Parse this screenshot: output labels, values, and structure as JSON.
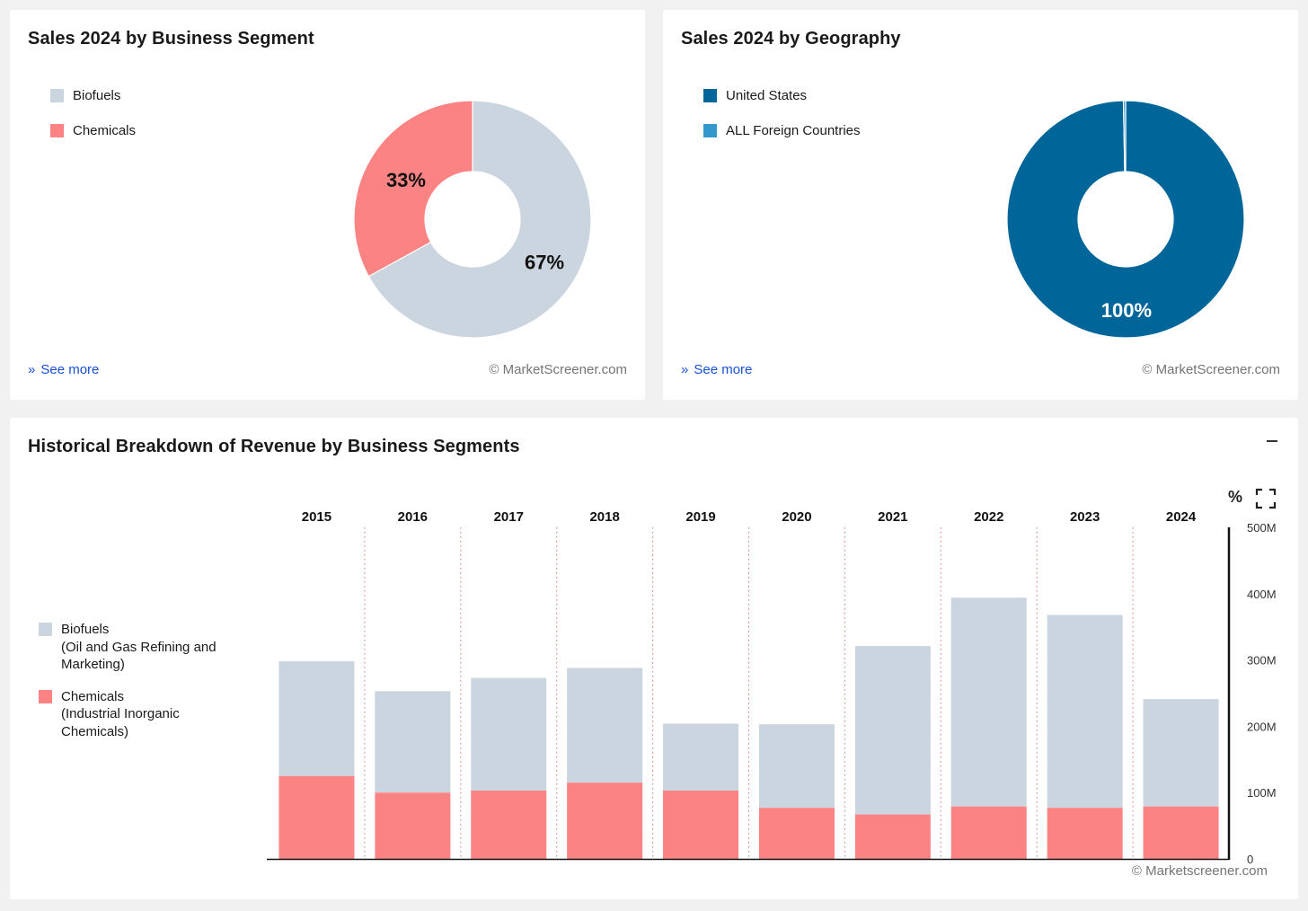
{
  "colors": {
    "biofuels": "#cbd5e0",
    "chemicals": "#fc8383",
    "united_states": "#006699",
    "foreign": "#3399cc",
    "link": "#1a4fd1"
  },
  "segment_card": {
    "title": "Sales 2024 by Business Segment",
    "see_more": "See more",
    "credit": "© MarketScreener.com",
    "legend": [
      {
        "label": "Biofuels",
        "color": "#cbd5e0"
      },
      {
        "label": "Chemicals",
        "color": "#fc8383"
      }
    ]
  },
  "geo_card": {
    "title": "Sales 2024 by Geography",
    "see_more": "See more",
    "credit": "© MarketScreener.com",
    "legend": [
      {
        "label": "United States",
        "color": "#006699"
      },
      {
        "label": "ALL Foreign Countries",
        "color": "#3399cc"
      }
    ]
  },
  "hist_card": {
    "title": "Historical Breakdown of Revenue by Business Segments",
    "percent_toggle": "%",
    "credit": "© Marketscreener.com",
    "legend": [
      {
        "line1": "Biofuels",
        "line2": "(Oil and Gas Refining and",
        "line3": "Marketing)",
        "color": "#cbd5e0"
      },
      {
        "line1": "Chemicals",
        "line2": "(Industrial Inorganic",
        "line3": "Chemicals)",
        "color": "#fc8383"
      }
    ]
  },
  "chart_data": [
    {
      "type": "pie",
      "title": "Sales 2024 by Business Segment",
      "donut": true,
      "slices": [
        {
          "name": "Biofuels",
          "value": 67,
          "label": "67%"
        },
        {
          "name": "Chemicals",
          "value": 33,
          "label": "33%"
        }
      ]
    },
    {
      "type": "pie",
      "title": "Sales 2024 by Geography",
      "donut": true,
      "slices": [
        {
          "name": "United States",
          "value": 99.7,
          "label": "100%"
        },
        {
          "name": "ALL Foreign Countries",
          "value": 0.3,
          "label": ""
        }
      ]
    },
    {
      "type": "bar",
      "stacked": true,
      "title": "Historical Breakdown of Revenue by Business Segments",
      "categories": [
        "2015",
        "2016",
        "2017",
        "2018",
        "2019",
        "2020",
        "2021",
        "2022",
        "2023",
        "2024"
      ],
      "series": [
        {
          "name": "Chemicals",
          "values": [
            125,
            100,
            103,
            115,
            103,
            77,
            67,
            79,
            77,
            79
          ]
        },
        {
          "name": "Biofuels",
          "values": [
            173,
            153,
            170,
            173,
            101,
            126,
            254,
            315,
            291,
            162
          ]
        }
      ],
      "ylim": [
        0,
        500
      ],
      "y_ticks": [
        0,
        100,
        200,
        300,
        400,
        500
      ],
      "y_tick_labels": [
        "0",
        "100M",
        "200M",
        "300M",
        "400M",
        "500M"
      ],
      "y_axis_position": "right",
      "xlabel": "",
      "ylabel": ""
    }
  ]
}
